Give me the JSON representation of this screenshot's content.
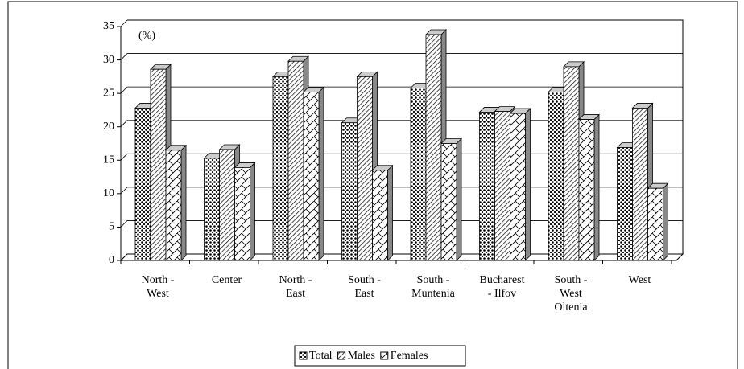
{
  "chart_data": {
    "type": "bar3d",
    "annotation": "(%)",
    "categories": [
      "North -\nWest",
      "Center",
      "North -\nEast",
      "South -\nEast",
      "South -\nMuntenia",
      "Bucharest\n- Ilfov",
      "South -\nWest\nOltenia",
      "West"
    ],
    "series": [
      {
        "name": "Total",
        "color": "#000000",
        "values": [
          22.8,
          15.3,
          27.5,
          20.6,
          25.8,
          22.2,
          25.2,
          16.9
        ]
      },
      {
        "name": "Males",
        "color": "#000000",
        "values": [
          28.6,
          16.6,
          29.8,
          27.5,
          33.8,
          22.3,
          29.0,
          22.8
        ]
      },
      {
        "name": "Females",
        "color": "#000000",
        "values": [
          16.5,
          13.9,
          25.2,
          13.5,
          17.5,
          22.0,
          21.1,
          10.8
        ]
      }
    ],
    "ylim": [
      0,
      35
    ],
    "yticks": [
      0,
      5,
      10,
      15,
      20,
      25,
      30,
      35
    ],
    "grid": true,
    "legend": "bottom"
  }
}
